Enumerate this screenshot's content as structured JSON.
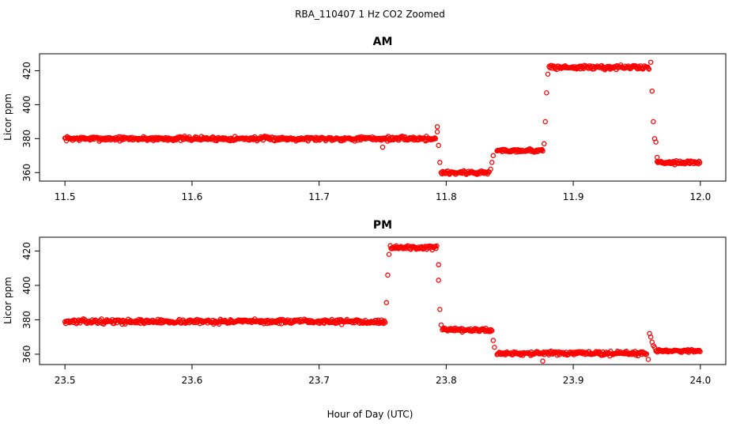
{
  "figure": {
    "title": "RBA_110407  1 Hz CO2 Zoomed",
    "xlabel": "Hour of Day (UTC)",
    "marker_color": "#ff0000"
  },
  "chart_data": [
    {
      "type": "scatter",
      "title": "AM",
      "xlabel": "",
      "ylabel": "Licor ppm",
      "xlim": [
        11.48,
        12.02
      ],
      "ylim": [
        355,
        430
      ],
      "xticks": [
        "11.5",
        "11.6",
        "11.7",
        "11.8",
        "11.9",
        "12.0"
      ],
      "xtick_values": [
        11.5,
        11.6,
        11.7,
        11.8,
        11.9,
        12.0
      ],
      "yticks": [
        "360",
        "380",
        "400",
        "420"
      ],
      "ytick_values": [
        360,
        380,
        400,
        420
      ],
      "segments": [
        {
          "x_start": 11.5,
          "x_end": 11.792,
          "y": 380,
          "noise": 1.2
        },
        {
          "x_start": 11.796,
          "x_end": 11.834,
          "y": 360,
          "noise": 1.2
        },
        {
          "x_start": 11.84,
          "x_end": 11.876,
          "y": 373,
          "noise": 1.0
        },
        {
          "x_start": 11.881,
          "x_end": 11.96,
          "y": 422,
          "noise": 1.2
        },
        {
          "x_start": 11.966,
          "x_end": 12.0,
          "y": 366,
          "noise": 1.0
        }
      ],
      "points": [
        {
          "x": 11.75,
          "y": 375
        },
        {
          "x": 11.793,
          "y": 387
        },
        {
          "x": 11.793,
          "y": 384
        },
        {
          "x": 11.794,
          "y": 376
        },
        {
          "x": 11.795,
          "y": 366
        },
        {
          "x": 11.835,
          "y": 362
        },
        {
          "x": 11.836,
          "y": 366
        },
        {
          "x": 11.837,
          "y": 370
        },
        {
          "x": 11.877,
          "y": 377
        },
        {
          "x": 11.878,
          "y": 390
        },
        {
          "x": 11.879,
          "y": 407
        },
        {
          "x": 11.88,
          "y": 418
        },
        {
          "x": 11.961,
          "y": 425
        },
        {
          "x": 11.962,
          "y": 408
        },
        {
          "x": 11.963,
          "y": 390
        },
        {
          "x": 11.964,
          "y": 380
        },
        {
          "x": 11.965,
          "y": 378
        },
        {
          "x": 11.966,
          "y": 369
        }
      ]
    },
    {
      "type": "scatter",
      "title": "PM",
      "xlabel": "",
      "ylabel": "Licor ppm",
      "xlim": [
        23.48,
        24.02
      ],
      "ylim": [
        354,
        428
      ],
      "xticks": [
        "23.5",
        "23.6",
        "23.7",
        "23.8",
        "23.9",
        "24.0"
      ],
      "xtick_values": [
        23.5,
        23.6,
        23.7,
        23.8,
        23.9,
        24.0
      ],
      "yticks": [
        "360",
        "380",
        "400",
        "420"
      ],
      "ytick_values": [
        360,
        380,
        400,
        420
      ],
      "segments": [
        {
          "x_start": 23.5,
          "x_end": 23.752,
          "y": 379,
          "noise": 1.2
        },
        {
          "x_start": 23.756,
          "x_end": 23.793,
          "y": 422,
          "noise": 1.2
        },
        {
          "x_start": 23.797,
          "x_end": 23.836,
          "y": 374,
          "noise": 1.0
        },
        {
          "x_start": 23.84,
          "x_end": 23.958,
          "y": 360.5,
          "noise": 1.2
        },
        {
          "x_start": 23.965,
          "x_end": 24.0,
          "y": 362,
          "noise": 0.8
        }
      ],
      "points": [
        {
          "x": 23.753,
          "y": 390
        },
        {
          "x": 23.754,
          "y": 406
        },
        {
          "x": 23.755,
          "y": 418
        },
        {
          "x": 23.794,
          "y": 412
        },
        {
          "x": 23.794,
          "y": 403
        },
        {
          "x": 23.795,
          "y": 386
        },
        {
          "x": 23.796,
          "y": 377
        },
        {
          "x": 23.837,
          "y": 368
        },
        {
          "x": 23.838,
          "y": 364
        },
        {
          "x": 23.876,
          "y": 356
        },
        {
          "x": 23.959,
          "y": 357
        },
        {
          "x": 23.96,
          "y": 372
        },
        {
          "x": 23.961,
          "y": 370
        },
        {
          "x": 23.962,
          "y": 367
        },
        {
          "x": 23.963,
          "y": 365
        },
        {
          "x": 23.964,
          "y": 364
        }
      ]
    }
  ]
}
